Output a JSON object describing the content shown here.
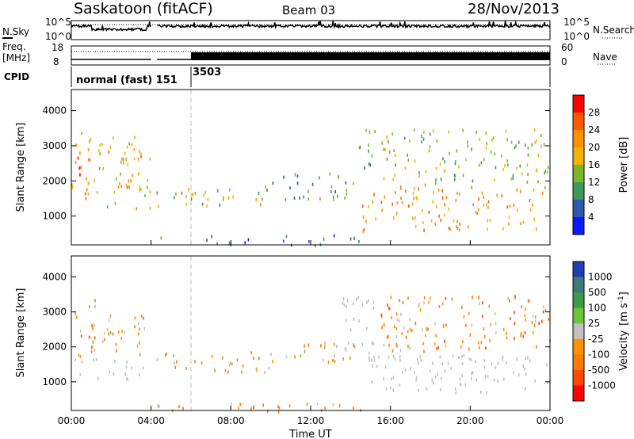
{
  "header": {
    "station": "Saskatoon (fitACF)",
    "beam": "Beam 03",
    "date": "28/Nov/2013"
  },
  "top_panels": {
    "nsky_label": "N.Sky",
    "nsky_ticks": [
      "10^5",
      "10^0"
    ],
    "nsearch_ticks": [
      "10^5",
      "10^0"
    ],
    "nsearch_label": "N.Search",
    "freq_label_line1": "Freq.",
    "freq_label_line2": "[MHz]",
    "freq_ticks": [
      "18",
      "8"
    ],
    "nave_ticks": [
      "60",
      "0"
    ],
    "nave_label": "Nave",
    "cpid_label": "CPID",
    "cpid_segments": [
      {
        "label": "normal (fast) 151",
        "start_hour": 0,
        "end_hour": 6
      },
      {
        "label": "3503",
        "start_hour": 6,
        "end_hour": 24
      }
    ]
  },
  "power_colorbar": {
    "title": "Power [dB]",
    "ticks": [
      "28",
      "24",
      "20",
      "16",
      "12",
      "8",
      "4"
    ],
    "colors": [
      "#ff0000",
      "#ff5a00",
      "#ff9000",
      "#f2b400",
      "#7ab52a",
      "#3f9a5a",
      "#2c5aa8",
      "#0a1aff"
    ]
  },
  "velocity_colorbar": {
    "title_main": "Velocity",
    "title_units": "[m s",
    "title_exp": "-1",
    "title_close": "]",
    "ticks": [
      "1000",
      "500",
      "100",
      "25",
      "-25",
      "-100",
      "-500",
      "-1000"
    ],
    "colors": [
      "#1f3fae",
      "#3e7a7a",
      "#3c9a48",
      "#6cc43a",
      "#c0c0c0",
      "#ff9000",
      "#ff7800",
      "#ff4800",
      "#ff0000"
    ]
  },
  "xaxis": {
    "title": "Time UT",
    "ticks": [
      "00:00",
      "04:00",
      "08:00",
      "12:00",
      "16:00",
      "20:00",
      "00:00"
    ]
  },
  "yaxis": {
    "title": "Slant Range [km]",
    "ticks": [
      "4000",
      "3000",
      "2000",
      "1000"
    ]
  },
  "chart_data": [
    {
      "type": "heatmap",
      "title": "Power [dB]",
      "xlabel": "Time UT",
      "ylabel": "Slant Range [km]",
      "xlim": [
        0,
        24
      ],
      "ylim": [
        180,
        4600
      ],
      "colorbar_range": [
        0,
        30
      ],
      "regions": [
        {
          "t": [
            0.0,
            1.0
          ],
          "r": [
            1300,
            3500
          ],
          "value": 22
        },
        {
          "t": [
            1.0,
            4.0
          ],
          "r": [
            1200,
            3300
          ],
          "value": 18
        },
        {
          "t": [
            4.2,
            6.5
          ],
          "r": [
            1300,
            1900
          ],
          "value": 14
        },
        {
          "t": [
            6.5,
            10.0
          ],
          "r": [
            1300,
            1900
          ],
          "value": 14
        },
        {
          "t": [
            10.0,
            14.2
          ],
          "r": [
            1500,
            2300
          ],
          "value": 10
        },
        {
          "t": [
            14.3,
            15.2
          ],
          "r": [
            2000,
            3500
          ],
          "value": 10
        },
        {
          "t": [
            14.5,
            24.0
          ],
          "r": [
            600,
            1900
          ],
          "value": 20
        },
        {
          "t": [
            15.5,
            24.0
          ],
          "r": [
            1900,
            3500
          ],
          "value": 14
        },
        {
          "t": [
            4.0,
            14.5
          ],
          "r": [
            180,
            500
          ],
          "value": 8
        }
      ]
    },
    {
      "type": "heatmap",
      "title": "Velocity",
      "xlabel": "Time UT",
      "ylabel": "Slant Range [km]",
      "xlim": [
        0,
        24
      ],
      "ylim": [
        180,
        4600
      ],
      "colorbar_range": [
        -1000,
        1000
      ],
      "regions": [
        {
          "t": [
            0.0,
            1.2
          ],
          "r": [
            1700,
            3500
          ],
          "value": -400,
          "ground": false
        },
        {
          "t": [
            0.0,
            3.8
          ],
          "r": [
            1100,
            1700
          ],
          "value": 0,
          "ground": true
        },
        {
          "t": [
            1.0,
            3.8
          ],
          "r": [
            1800,
            3100
          ],
          "value": -200,
          "ground": false
        },
        {
          "t": [
            4.2,
            10.0
          ],
          "r": [
            1300,
            1900
          ],
          "value": -150,
          "ground": false
        },
        {
          "t": [
            10.0,
            14.2
          ],
          "r": [
            1600,
            2200
          ],
          "value": -200,
          "ground": false
        },
        {
          "t": [
            13.5,
            15.2
          ],
          "r": [
            1500,
            3500
          ],
          "value": 0,
          "ground": true
        },
        {
          "t": [
            15.0,
            24.0
          ],
          "r": [
            700,
            1800
          ],
          "value": 0,
          "ground": true
        },
        {
          "t": [
            15.5,
            24.0
          ],
          "r": [
            1900,
            3500
          ],
          "value": -300,
          "ground": false
        },
        {
          "t": [
            4.0,
            14.5
          ],
          "r": [
            180,
            450
          ],
          "value": -200,
          "ground": false
        }
      ]
    }
  ]
}
